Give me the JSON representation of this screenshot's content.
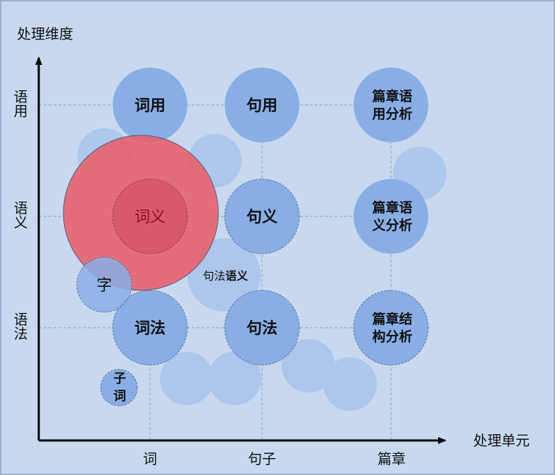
{
  "colors": {
    "background": "#c8d9ef",
    "bubble": "#89aee6",
    "bubble_faint": "#a9c3eb",
    "highlight": "#e8606e",
    "axis": "#000000",
    "grid": "#8a9fbe"
  },
  "y_axis": {
    "title": "处理维度",
    "levels": [
      "语用",
      "语义",
      "语法"
    ]
  },
  "x_axis": {
    "title": "处理单元",
    "units": [
      "词",
      "句子",
      "篇章"
    ]
  },
  "nodes": {
    "ci_yong": "词用",
    "ju_yong": "句用",
    "pian_yong": [
      "篇章语",
      "用分析"
    ],
    "ci_yi": "词义",
    "ju_yi": "句义",
    "pian_yi": [
      "篇章语",
      "义分析"
    ],
    "ci_fa": "词法",
    "ju_fa": "句法",
    "pian_fa": [
      "篇章结",
      "构分析"
    ],
    "zi": "字",
    "zi_ci": [
      "子",
      "词"
    ],
    "jufa_yuyi_prefix": "句法",
    "jufa_yuyi_suffix": "语义"
  }
}
